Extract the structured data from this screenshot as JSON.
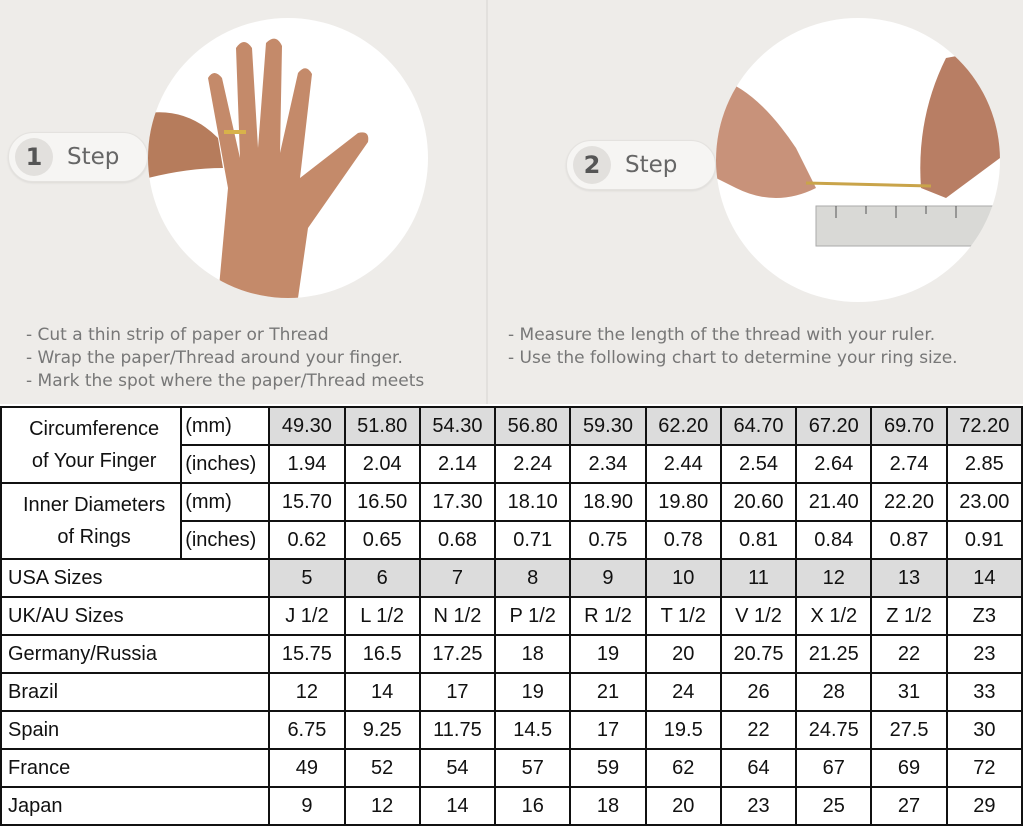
{
  "step1": {
    "number": "1",
    "label": "Step",
    "instructions": [
      "- Cut a thin strip of paper or Thread",
      "- Wrap the paper/Thread around your finger.",
      "- Mark the spot where the paper/Thread meets"
    ]
  },
  "step2": {
    "number": "2",
    "label": "Step",
    "instructions": [
      "- Measure the length of the thread with your ruler.",
      "- Use the following chart to determine your ring size."
    ]
  },
  "table": {
    "circumference": {
      "label_lines": [
        "Circumference",
        "of Your Finger"
      ],
      "mm_label": "(mm)",
      "inches_label": "(inches)",
      "mm": [
        "49.30",
        "51.80",
        "54.30",
        "56.80",
        "59.30",
        "62.20",
        "64.70",
        "67.20",
        "69.70",
        "72.20"
      ],
      "inches": [
        "1.94",
        "2.04",
        "2.14",
        "2.24",
        "2.34",
        "2.44",
        "2.54",
        "2.64",
        "2.74",
        "2.85"
      ]
    },
    "diameter": {
      "label_lines": [
        "Inner Diameters",
        "of Rings"
      ],
      "mm_label": "(mm)",
      "inches_label": "(inches)",
      "mm": [
        "15.70",
        "16.50",
        "17.30",
        "18.10",
        "18.90",
        "19.80",
        "20.60",
        "21.40",
        "22.20",
        "23.00"
      ],
      "inches": [
        "0.62",
        "0.65",
        "0.68",
        "0.71",
        "0.75",
        "0.78",
        "0.81",
        "0.84",
        "0.87",
        "0.91"
      ]
    },
    "rows": [
      {
        "label": "USA Sizes",
        "values": [
          "5",
          "6",
          "7",
          "8",
          "9",
          "10",
          "11",
          "12",
          "13",
          "14"
        ]
      },
      {
        "label": "UK/AU Sizes",
        "values": [
          "J 1/2",
          "L 1/2",
          "N 1/2",
          "P 1/2",
          "R 1/2",
          "T 1/2",
          "V 1/2",
          "X 1/2",
          "Z 1/2",
          "Z3"
        ]
      },
      {
        "label": "Germany/Russia",
        "values": [
          "15.75",
          "16.5",
          "17.25",
          "18",
          "19",
          "20",
          "20.75",
          "21.25",
          "22",
          "23"
        ]
      },
      {
        "label": "Brazil",
        "values": [
          "12",
          "14",
          "17",
          "19",
          "21",
          "24",
          "26",
          "28",
          "31",
          "33"
        ]
      },
      {
        "label": "Spain",
        "values": [
          "6.75",
          "9.25",
          "11.75",
          "14.5",
          "17",
          "19.5",
          "22",
          "24.75",
          "27.5",
          "30"
        ]
      },
      {
        "label": "France",
        "values": [
          "49",
          "52",
          "54",
          "57",
          "59",
          "62",
          "64",
          "67",
          "69",
          "72"
        ]
      },
      {
        "label": "Japan",
        "values": [
          "9",
          "12",
          "14",
          "16",
          "18",
          "20",
          "23",
          "25",
          "27",
          "29"
        ]
      }
    ]
  }
}
